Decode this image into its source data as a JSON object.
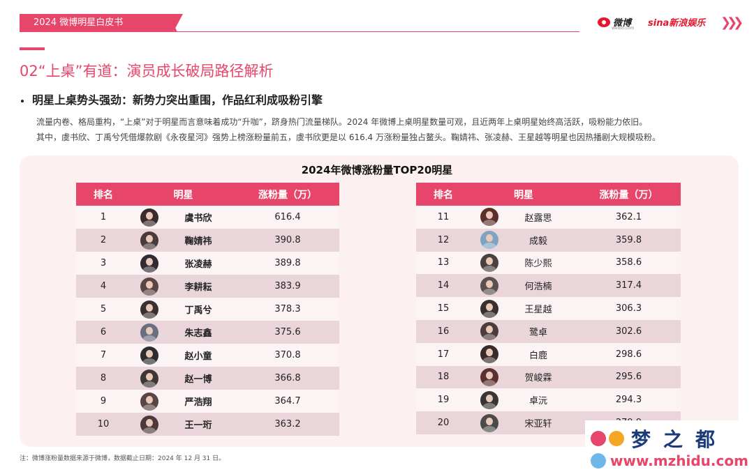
{
  "header": {
    "tab_label": "2024 微博明星白皮书",
    "weibo_logo": "微博",
    "weibo_sub": "weibo.com",
    "sina_logo": "sina新浪娱乐",
    "nav_icon": "triple-chevron-right",
    "accent_color": "#e8456a"
  },
  "section": {
    "title": "02“上桌”有道：演员成长破局路径解析",
    "subtitle": "明星上桌势头强劲：新势力突出重围，作品红利成吸粉引擎",
    "paragraph_1": "流量内卷、格局重构，“上桌”对于明星而言意味着成功“升咖”，跻身热门流量梯队。2024 年微博上桌明星数量可观，且近两年上桌明星始终高活跃，吸粉能力依旧。",
    "paragraph_2": "其中，虞书欣、丁禹兮凭借爆款剧《永夜星河》强势上榜涨粉量前五，虞书欣更是以 616.4 万涨粉量独占鳌头。鞠婧祎、张凌赫、王星越等明星也因热播剧大规模吸粉。"
  },
  "table": {
    "title": "2024年微博涨粉量TOP20明星",
    "col_rank": "排名",
    "col_star": "明星",
    "col_gain": "涨粉量（万）",
    "left_rows": [
      {
        "rank": "1",
        "name": "虞书欣",
        "gain": "616.4"
      },
      {
        "rank": "2",
        "name": "鞠婧祎",
        "gain": "390.8"
      },
      {
        "rank": "3",
        "name": "张凌赫",
        "gain": "389.8"
      },
      {
        "rank": "4",
        "name": "李耕耘",
        "gain": "383.9"
      },
      {
        "rank": "5",
        "name": "丁禹兮",
        "gain": "378.3"
      },
      {
        "rank": "6",
        "name": "朱志鑫",
        "gain": "375.6"
      },
      {
        "rank": "7",
        "name": "赵小童",
        "gain": "370.8"
      },
      {
        "rank": "8",
        "name": "赵一博",
        "gain": "366.8"
      },
      {
        "rank": "9",
        "name": "严浩翔",
        "gain": "364.7"
      },
      {
        "rank": "10",
        "name": "王一珩",
        "gain": "363.2"
      }
    ],
    "right_rows": [
      {
        "rank": "11",
        "name": "赵露思",
        "gain": "362.1"
      },
      {
        "rank": "12",
        "name": "成毅",
        "gain": "359.8"
      },
      {
        "rank": "13",
        "name": "陈少熙",
        "gain": "358.6"
      },
      {
        "rank": "14",
        "name": "何浩楠",
        "gain": "317.4"
      },
      {
        "rank": "15",
        "name": "王星越",
        "gain": "306.3"
      },
      {
        "rank": "16",
        "name": "鹭卓",
        "gain": "302.6"
      },
      {
        "rank": "17",
        "name": "白鹿",
        "gain": "298.6"
      },
      {
        "rank": "18",
        "name": "贺峻霖",
        "gain": "295.6"
      },
      {
        "rank": "19",
        "name": "卓沅",
        "gain": "294.3"
      },
      {
        "rank": "20",
        "name": "宋亚轩",
        "gain": "279.9"
      }
    ]
  },
  "note": "注：微博涨粉量数据来源于微博，数据截止日期：2024 年 12 月 31 日。",
  "watermark": {
    "name": "梦之都",
    "url": "www.mzhidu.com"
  }
}
